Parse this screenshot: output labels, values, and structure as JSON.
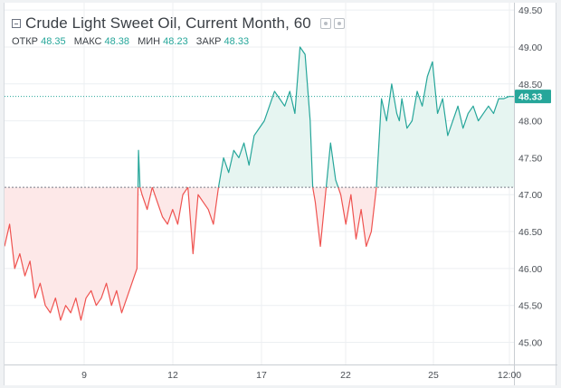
{
  "legend": {
    "symbol_title": "Crude Light Sweet Oil, Current Month, 60",
    "ohlc": [
      {
        "label": "ОТКР",
        "value": "48.35"
      },
      {
        "label": "МАКС",
        "value": "48.38"
      },
      {
        "label": "МИН",
        "value": "48.23"
      },
      {
        "label": "ЗАКР",
        "value": "48.33"
      }
    ]
  },
  "colors": {
    "up_line": "#26a69a",
    "up_fill": "#e6f5f1",
    "down_line": "#ef5350",
    "down_fill": "#fde8e8",
    "price_badge": "#26a69a",
    "grid": "#eceff2"
  },
  "chart_data": {
    "type": "area",
    "baseline_value": 47.1,
    "last_price": 48.33,
    "last_price_label": "48.33",
    "x_ticks": [
      "9",
      "12",
      "17",
      "22",
      "25",
      "12:00"
    ],
    "y_ticks": [
      "45.00",
      "45.50",
      "46.00",
      "46.50",
      "47.00",
      "47.50",
      "48.00",
      "48.50",
      "49.00",
      "49.50"
    ],
    "ylim": [
      44.7,
      49.6
    ],
    "xlim": [
      0,
      100
    ],
    "x": [
      0,
      1,
      2,
      3,
      4,
      5,
      6,
      7,
      8,
      9,
      10,
      11,
      12,
      13,
      14,
      15,
      16,
      17,
      18,
      19,
      20,
      21,
      22,
      23,
      24,
      25,
      26,
      26.3,
      26.6,
      27,
      28,
      29,
      30,
      31,
      32,
      33,
      34,
      35,
      36,
      37,
      38,
      39,
      40,
      41,
      42,
      43,
      44,
      45,
      46,
      47,
      48,
      49,
      50,
      51,
      52,
      53,
      54,
      55,
      56,
      57,
      58,
      59,
      60,
      60.5,
      61,
      62,
      63,
      64,
      65,
      66,
      67,
      68,
      69,
      70,
      71,
      72,
      73,
      74,
      75,
      76,
      77,
      77.5,
      78,
      79,
      80,
      81,
      82,
      83,
      84,
      85,
      86,
      87,
      88,
      89,
      90,
      91,
      92,
      93,
      94,
      95,
      96,
      97,
      98,
      99,
      100
    ],
    "y": [
      46.3,
      46.6,
      46.0,
      46.2,
      45.9,
      46.1,
      45.6,
      45.8,
      45.5,
      45.4,
      45.6,
      45.3,
      45.5,
      45.4,
      45.6,
      45.3,
      45.6,
      45.7,
      45.5,
      45.6,
      45.8,
      45.5,
      45.7,
      45.4,
      45.6,
      45.8,
      46.0,
      47.6,
      47.1,
      47.0,
      46.8,
      47.1,
      46.9,
      46.7,
      46.6,
      46.8,
      46.6,
      47.0,
      47.1,
      46.2,
      47.0,
      46.9,
      46.8,
      46.6,
      47.1,
      47.5,
      47.3,
      47.6,
      47.5,
      47.7,
      47.4,
      47.8,
      47.9,
      48.0,
      48.2,
      48.4,
      48.3,
      48.2,
      48.4,
      48.1,
      49.0,
      48.9,
      48.0,
      47.1,
      46.9,
      46.3,
      47.0,
      47.7,
      47.2,
      47.0,
      46.6,
      47.0,
      46.4,
      46.8,
      46.3,
      46.5,
      47.1,
      48.3,
      48.0,
      48.5,
      48.1,
      48.0,
      48.3,
      47.9,
      48.0,
      48.4,
      48.2,
      48.6,
      48.8,
      48.1,
      48.3,
      47.8,
      48.0,
      48.2,
      47.9,
      48.1,
      48.2,
      48.0,
      48.1,
      48.2,
      48.1,
      48.3,
      48.3,
      48.33,
      48.33
    ]
  }
}
